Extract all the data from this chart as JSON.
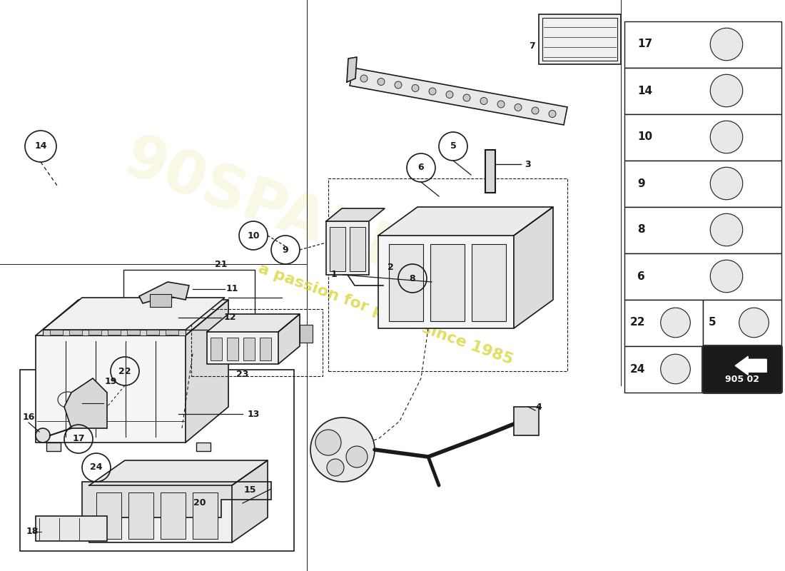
{
  "background_color": "#ffffff",
  "line_color": "#1a1a1a",
  "watermark_text": "a passion for parts since 1985",
  "watermark_color": "#d4d020",
  "part_number": "905 02",
  "page_margin_lines": true
}
